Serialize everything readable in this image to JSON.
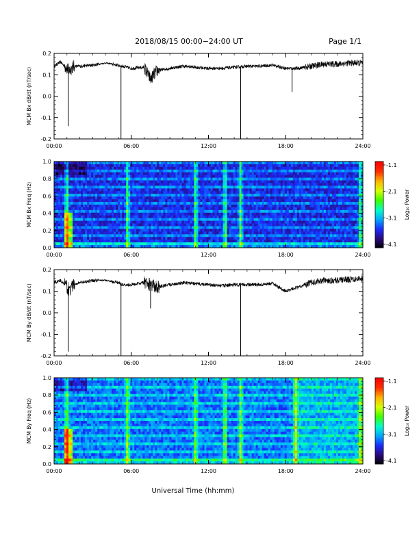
{
  "header": {
    "title": "2018/08/15  00:00−24:00 UT",
    "page": "Page 1/1"
  },
  "x_axis_title": "Universal Time (hh:mm)",
  "colors": {
    "trace": "#000000",
    "axis": "#000000",
    "colormap": [
      "#000000",
      "#2a0a7a",
      "#1a2cff",
      "#00a8ff",
      "#00ffc8",
      "#3cff00",
      "#d6ff00",
      "#ffb400",
      "#ff3000",
      "#ff0000"
    ]
  },
  "chart_data": [
    {
      "type": "line",
      "title": "",
      "ylabel": "MCM Bx dB/dt (nT/sec)",
      "xlabel": "",
      "x_ticks": [
        "00:00",
        "06:00",
        "12:00",
        "18:00",
        "24:00"
      ],
      "xlim": [
        0,
        24
      ],
      "ylim": [
        -0.2,
        0.2
      ],
      "y_ticks": [
        "0.2",
        "0.1",
        "0.0",
        "-0.1",
        "-0.2"
      ],
      "grid": false,
      "series": [
        {
          "x": [
            0,
            0.5,
            1.0,
            1.1,
            1.2,
            1.5,
            2,
            3,
            3.5,
            4,
            4.5,
            5.2,
            5.3,
            6,
            7,
            7.5,
            8,
            9,
            10,
            11,
            12,
            13,
            14,
            14.5,
            15,
            16,
            17,
            18,
            18.5,
            19,
            20,
            21,
            22,
            23,
            24
          ],
          "y": [
            0.14,
            0.16,
            0.13,
            -0.14,
            0.12,
            0.14,
            0.14,
            0.145,
            0.15,
            0.155,
            0.15,
            -0.2,
            0.14,
            0.13,
            0.135,
            0.08,
            0.12,
            0.13,
            0.14,
            0.135,
            0.13,
            0.13,
            0.135,
            -0.2,
            0.14,
            0.14,
            0.145,
            0.13,
            0.02,
            0.13,
            0.14,
            0.15,
            0.15,
            0.155,
            0.155
          ]
        }
      ]
    },
    {
      "type": "heatmap",
      "title": "",
      "ylabel": "MCM Bx Freq (Hz)",
      "x_ticks": [
        "00:00",
        "06:00",
        "12:00",
        "18:00",
        "24:00"
      ],
      "xlim": [
        0,
        24
      ],
      "ylim": [
        0.0,
        1.0
      ],
      "y_ticks": [
        "1.0",
        "0.8",
        "0.6",
        "0.4",
        "0.2",
        "0.0"
      ],
      "colorbar": {
        "label": "Log₁₀ Power",
        "ticks": [
          "-1.1",
          "-2.1",
          "-3.1",
          "-4.1"
        ],
        "range": [
          -4.1,
          -1.1
        ]
      },
      "bursts_utc_hours": [
        1.0,
        5.7,
        11.0,
        13.3,
        14.5,
        23.8
      ],
      "grid": false
    },
    {
      "type": "line",
      "title": "",
      "ylabel": "MCM By dB/dt (nT/sec)",
      "xlabel": "",
      "x_ticks": [
        "00:00",
        "06:00",
        "12:00",
        "18:00",
        "24:00"
      ],
      "xlim": [
        0,
        24
      ],
      "ylim": [
        -0.2,
        0.2
      ],
      "y_ticks": [
        "0.2",
        "0.1",
        "0.0",
        "-0.1",
        "-0.2"
      ],
      "grid": false,
      "series": [
        {
          "x": [
            0,
            0.5,
            1.0,
            1.1,
            1.2,
            1.5,
            2,
            3,
            4,
            5,
            5.2,
            5.3,
            6,
            7,
            7.5,
            8,
            9,
            10,
            11,
            12,
            13,
            14,
            14.5,
            15,
            16,
            17,
            18,
            19,
            20,
            21,
            22,
            23,
            24
          ],
          "y": [
            0.14,
            0.15,
            0.12,
            -0.18,
            0.1,
            0.13,
            0.14,
            0.15,
            0.15,
            0.14,
            -0.2,
            0.13,
            0.13,
            0.14,
            0.02,
            0.12,
            0.13,
            0.14,
            0.135,
            0.13,
            0.125,
            0.13,
            -0.2,
            0.13,
            0.13,
            0.135,
            0.1,
            0.12,
            0.14,
            0.15,
            0.15,
            0.155,
            0.16
          ]
        }
      ]
    },
    {
      "type": "heatmap",
      "title": "",
      "ylabel": "MCM By Freq (Hz)",
      "x_ticks": [
        "00:00",
        "06:00",
        "12:00",
        "18:00",
        "24:00"
      ],
      "xlim": [
        0,
        24
      ],
      "ylim": [
        0.0,
        1.0
      ],
      "y_ticks": [
        "1.0",
        "0.8",
        "0.6",
        "0.4",
        "0.2",
        "0.0"
      ],
      "colorbar": {
        "label": "Log₁₀ Power",
        "ticks": [
          "-1.1",
          "-2.1",
          "-3.1",
          "-4.1"
        ],
        "range": [
          -4.1,
          -1.1
        ]
      },
      "bursts_utc_hours": [
        1.0,
        5.7,
        11.0,
        13.3,
        14.5,
        18.8,
        23.8
      ],
      "grid": false
    }
  ]
}
